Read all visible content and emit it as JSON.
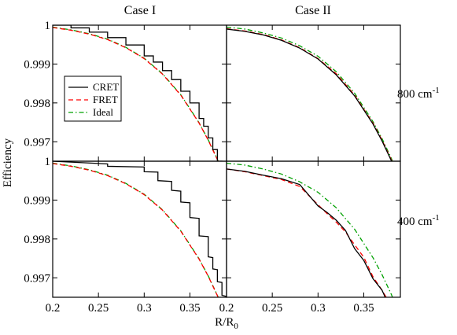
{
  "figure": {
    "column_titles": [
      "Case I",
      "Case II"
    ],
    "row_labels": [
      {
        "value": "800 cm",
        "sup": "-1"
      },
      {
        "value": "400 cm",
        "sup": "-1"
      }
    ],
    "ylabel": "Efficiency",
    "xlabel": {
      "main": "R/R",
      "sub": "0"
    }
  },
  "chart_data": {
    "type": "line",
    "layout": "2x2 grid, shared axes",
    "xlim": [
      0.2,
      0.39
    ],
    "ylim": [
      0.9965,
      1.0
    ],
    "x_ticks": [
      0.2,
      0.25,
      0.3,
      0.35
    ],
    "x_tick_labels": [
      "0.2",
      "0.25",
      "0.3",
      "0.35"
    ],
    "y_ticks": [
      1.0,
      0.999,
      0.998,
      0.997
    ],
    "y_tick_labels": [
      "1",
      "0.999",
      "0.998",
      "0.997"
    ],
    "legend": {
      "placement": "left, inside top-left panel",
      "entries": [
        {
          "name": "CRET",
          "color": "#000000",
          "dash": "solid"
        },
        {
          "name": "FRET",
          "color": "#ff0000",
          "dash": "dashed"
        },
        {
          "name": "Ideal",
          "color": "#00a000",
          "dash": "dashdot"
        }
      ]
    },
    "panels": [
      {
        "id": "case1-800",
        "column": 0,
        "row": 0,
        "series": [
          {
            "name": "Ideal",
            "x": [
              0.2,
              0.22,
              0.24,
              0.26,
              0.28,
              0.3,
              0.32,
              0.34,
              0.36,
              0.37,
              0.38,
              0.39
            ],
            "y": [
              0.99995,
              0.99988,
              0.99978,
              0.99964,
              0.99943,
              0.99915,
              0.99875,
              0.99821,
              0.99749,
              0.99705,
              0.99655,
              0.99598
            ]
          },
          {
            "name": "FRET",
            "x": [
              0.2,
              0.22,
              0.24,
              0.26,
              0.28,
              0.3,
              0.32,
              0.34,
              0.36,
              0.37,
              0.38,
              0.39
            ],
            "y": [
              0.99994,
              0.99987,
              0.99977,
              0.99963,
              0.99942,
              0.99914,
              0.99874,
              0.9982,
              0.99748,
              0.99704,
              0.99654,
              0.99597
            ]
          },
          {
            "name": "CRET",
            "x": [
              0.2,
              0.22,
              0.22,
              0.24,
              0.24,
              0.26,
              0.26,
              0.28,
              0.28,
              0.3,
              0.3,
              0.31,
              0.31,
              0.32,
              0.32,
              0.33,
              0.33,
              0.34,
              0.34,
              0.35,
              0.35,
              0.36,
              0.36,
              0.365,
              0.365,
              0.37,
              0.37,
              0.375,
              0.375,
              0.38,
              0.38,
              0.385,
              0.385,
              0.39
            ],
            "y": [
              1.0,
              1.0,
              0.99993,
              0.99993,
              0.99982,
              0.99982,
              0.99968,
              0.99968,
              0.99949,
              0.99949,
              0.99921,
              0.99921,
              0.99905,
              0.99905,
              0.99883,
              0.99883,
              0.9986,
              0.9986,
              0.9983,
              0.9983,
              0.998,
              0.998,
              0.9976,
              0.9976,
              0.9974,
              0.9974,
              0.9971,
              0.9971,
              0.9968,
              0.9968,
              0.9965,
              0.9965,
              0.9962,
              0.9962
            ]
          }
        ]
      },
      {
        "id": "case2-800",
        "column": 1,
        "row": 0,
        "series": [
          {
            "name": "Ideal",
            "x": [
              0.2,
              0.22,
              0.24,
              0.26,
              0.28,
              0.3,
              0.32,
              0.34,
              0.36,
              0.37,
              0.38,
              0.39
            ],
            "y": [
              0.99995,
              0.9999,
              0.9998,
              0.99967,
              0.99947,
              0.9992,
              0.9988,
              0.99825,
              0.99752,
              0.99708,
              0.99658,
              0.996
            ]
          },
          {
            "name": "FRET",
            "x": [
              0.2,
              0.22,
              0.24,
              0.26,
              0.28,
              0.3,
              0.32,
              0.34,
              0.36,
              0.37,
              0.38,
              0.39
            ],
            "y": [
              0.99991,
              0.99985,
              0.99976,
              0.99962,
              0.99942,
              0.99914,
              0.99875,
              0.9982,
              0.99748,
              0.99704,
              0.99654,
              0.99597
            ]
          },
          {
            "name": "CRET",
            "x": [
              0.2,
              0.22,
              0.24,
              0.26,
              0.28,
              0.3,
              0.32,
              0.34,
              0.36,
              0.37,
              0.38,
              0.39
            ],
            "y": [
              0.9999,
              0.99984,
              0.99975,
              0.99961,
              0.99941,
              0.99913,
              0.99872,
              0.99818,
              0.99746,
              0.99702,
              0.99652,
              0.99595
            ]
          }
        ]
      },
      {
        "id": "case1-400",
        "column": 0,
        "row": 1,
        "series": [
          {
            "name": "Ideal",
            "x": [
              0.2,
              0.22,
              0.24,
              0.26,
              0.28,
              0.3,
              0.32,
              0.34,
              0.36,
              0.37,
              0.38,
              0.39
            ],
            "y": [
              0.99995,
              0.99988,
              0.99978,
              0.99964,
              0.99943,
              0.99915,
              0.99875,
              0.99821,
              0.99749,
              0.99705,
              0.99655,
              0.99598
            ]
          },
          {
            "name": "FRET",
            "x": [
              0.2,
              0.22,
              0.24,
              0.26,
              0.28,
              0.3,
              0.32,
              0.34,
              0.36,
              0.37,
              0.38,
              0.39
            ],
            "y": [
              0.99994,
              0.99987,
              0.99977,
              0.99963,
              0.99942,
              0.99914,
              0.99874,
              0.9982,
              0.99748,
              0.99704,
              0.99654,
              0.99597
            ]
          },
          {
            "name": "CRET",
            "x": [
              0.2,
              0.26,
              0.26,
              0.3,
              0.3,
              0.315,
              0.315,
              0.33,
              0.33,
              0.34,
              0.34,
              0.35,
              0.35,
              0.36,
              0.36,
              0.37,
              0.37,
              0.375,
              0.375,
              0.38,
              0.38,
              0.385,
              0.385,
              0.39
            ],
            "y": [
              1.0,
              0.99993,
              0.99987,
              0.99985,
              0.99973,
              0.99972,
              0.9995,
              0.99948,
              0.99925,
              0.99923,
              0.99895,
              0.99893,
              0.99855,
              0.99853,
              0.99808,
              0.99806,
              0.99754,
              0.99752,
              0.99723,
              0.99721,
              0.9969,
              0.99688,
              0.99655,
              0.99652
            ]
          }
        ]
      },
      {
        "id": "case2-400",
        "column": 1,
        "row": 1,
        "series": [
          {
            "name": "Ideal",
            "x": [
              0.2,
              0.22,
              0.24,
              0.26,
              0.28,
              0.3,
              0.32,
              0.34,
              0.36,
              0.37,
              0.38,
              0.39
            ],
            "y": [
              0.99995,
              0.9999,
              0.9998,
              0.99967,
              0.99947,
              0.9992,
              0.9988,
              0.99825,
              0.99752,
              0.99708,
              0.99658,
              0.996
            ]
          },
          {
            "name": "FRET",
            "x": [
              0.2,
              0.22,
              0.24,
              0.26,
              0.28,
              0.3,
              0.31,
              0.32,
              0.33,
              0.34,
              0.35,
              0.36,
              0.37,
              0.38,
              0.39
            ],
            "y": [
              0.9998,
              0.99973,
              0.99963,
              0.99953,
              0.99935,
              0.99888,
              0.99865,
              0.99843,
              0.99818,
              0.99785,
              0.99753,
              0.99703,
              0.99668,
              0.99628,
              0.99578
            ]
          },
          {
            "name": "CRET",
            "x": [
              0.2,
              0.22,
              0.24,
              0.26,
              0.28,
              0.3,
              0.31,
              0.32,
              0.33,
              0.34,
              0.35,
              0.36,
              0.37,
              0.38,
              0.39
            ],
            "y": [
              0.9998,
              0.99974,
              0.99964,
              0.99955,
              0.9994,
              0.99885,
              0.99868,
              0.99848,
              0.99822,
              0.99775,
              0.99745,
              0.99698,
              0.99668,
              0.99615,
              0.9957
            ]
          }
        ]
      }
    ]
  }
}
